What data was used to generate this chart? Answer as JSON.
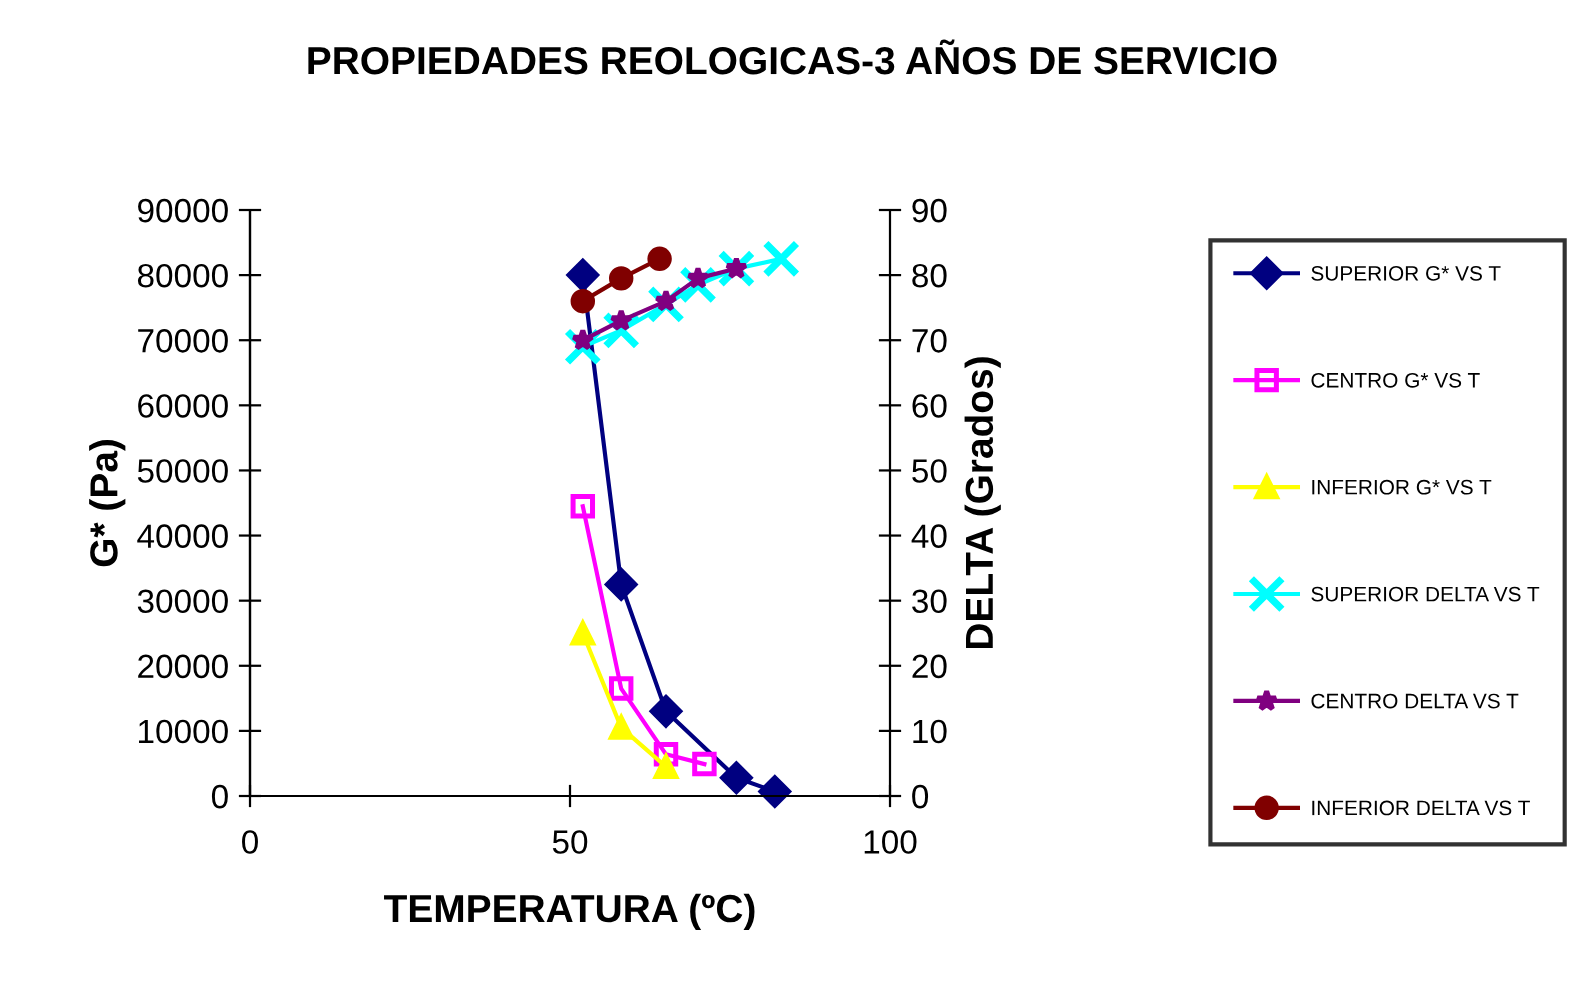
{
  "chart_data": {
    "type": "line",
    "title": "PROPIEDADES REOLOGICAS-3 AÑOS DE SERVICIO",
    "xlabel": "TEMPERATURA (ºC)",
    "ylabel": "G* (Pa)",
    "y2label": "DELTA (Grados)",
    "xlim": [
      0,
      100
    ],
    "xticks": [
      0,
      50,
      100
    ],
    "ylim": [
      0,
      90000
    ],
    "yticks": [
      0,
      10000,
      20000,
      30000,
      40000,
      50000,
      60000,
      70000,
      80000,
      90000
    ],
    "y2lim": [
      0,
      90
    ],
    "y2ticks": [
      0,
      10,
      20,
      30,
      40,
      50,
      60,
      70,
      80,
      90
    ],
    "grid": false,
    "legend": "right",
    "series": [
      {
        "name": "SUPERIOR G* VS T",
        "color": "#000080",
        "marker": "diamond",
        "x": [
          52,
          58,
          65,
          76,
          82
        ],
        "values": [
          80000,
          32500,
          13000,
          2800,
          700
        ]
      },
      {
        "name": "CENTRO G* VS T",
        "color": "#ff00ff",
        "marker": "square",
        "x": [
          52,
          58,
          65,
          71
        ],
        "values": [
          44500,
          16500,
          6400,
          4900
        ]
      },
      {
        "name": "INFERIOR G* VS T",
        "color": "#ffff00",
        "marker": "triangle",
        "x": [
          52,
          58,
          65
        ],
        "values": [
          25000,
          10500,
          4500
        ]
      },
      {
        "name": "SUPERIOR DELTA VS T",
        "color": "#00ffff",
        "marker": "cross",
        "axis": "y2",
        "x": [
          52,
          58,
          65,
          70,
          76,
          83
        ],
        "values": [
          69,
          71.5,
          75.5,
          78.5,
          81,
          82.5
        ]
      },
      {
        "name": "CENTRO DELTA VS T",
        "color": "#800080",
        "marker": "star",
        "axis": "y2",
        "x": [
          52,
          58,
          65,
          70,
          76
        ],
        "values": [
          70,
          73,
          76,
          79.5,
          81
        ]
      },
      {
        "name": "INFERIOR DELTA VS T",
        "color": "#800000",
        "marker": "circle",
        "axis": "y2",
        "x": [
          52,
          58,
          64
        ],
        "values": [
          76,
          79.5,
          82.5
        ]
      }
    ]
  }
}
